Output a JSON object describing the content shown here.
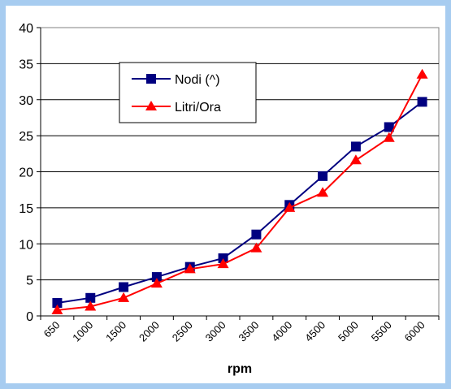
{
  "chart_data": {
    "type": "line",
    "title": "",
    "xlabel": "rpm",
    "ylabel": "",
    "categories": [
      "650",
      "1000",
      "1500",
      "2000",
      "2500",
      "3000",
      "3500",
      "4000",
      "4500",
      "5000",
      "5500",
      "6000"
    ],
    "ylim": [
      0,
      40
    ],
    "yticks": [
      0,
      5,
      10,
      15,
      20,
      25,
      30,
      35,
      40
    ],
    "grid": "horizontal",
    "legend_position": "upper-left inside plot",
    "series": [
      {
        "name": "Nodi (^)",
        "color": "#000080",
        "marker": "square",
        "values": [
          1.8,
          2.5,
          4.0,
          5.4,
          6.8,
          8.0,
          11.3,
          15.4,
          19.4,
          23.5,
          26.2,
          29.7
        ]
      },
      {
        "name": "Litri/Ora",
        "color": "#ff0000",
        "marker": "triangle",
        "values": [
          0.8,
          1.3,
          2.5,
          4.5,
          6.5,
          7.2,
          9.4,
          15.0,
          17.1,
          21.6,
          24.7,
          33.5
        ]
      }
    ]
  }
}
